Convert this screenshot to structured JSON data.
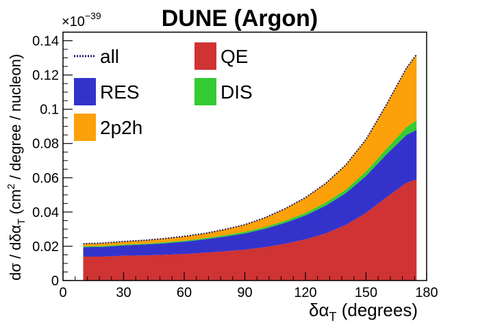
{
  "chart_data": {
    "type": "area",
    "title": "DUNE (Argon)",
    "stacked": true,
    "xlabel": "δα_T (degrees)",
    "ylabel": "dσ / dδα_T (cm^2 / degree / nucleon)",
    "y_multiplier": "×10^-39",
    "xlim": [
      0,
      180
    ],
    "ylim": [
      0,
      0.145
    ],
    "xticks": [
      0,
      30,
      60,
      90,
      120,
      150,
      180
    ],
    "xtick_labels": [
      "0",
      "30",
      "60",
      "90",
      "120",
      "150",
      "180"
    ],
    "yticks": [
      0,
      0.02,
      0.04,
      0.06,
      0.08,
      0.1,
      0.12,
      0.14
    ],
    "ytick_labels": [
      "0",
      "0.02",
      "0.04",
      "0.06",
      "0.08",
      "0.1",
      "0.12",
      "0.14"
    ],
    "x": [
      10,
      20,
      30,
      40,
      50,
      60,
      70,
      80,
      90,
      100,
      110,
      120,
      130,
      140,
      150,
      160,
      170,
      175
    ],
    "series": [
      {
        "name": "QE",
        "color": "#cf3333",
        "values": [
          0.014,
          0.014,
          0.0145,
          0.0147,
          0.015,
          0.0155,
          0.0162,
          0.017,
          0.018,
          0.0195,
          0.0215,
          0.024,
          0.0275,
          0.0325,
          0.0395,
          0.0485,
          0.057,
          0.059
        ]
      },
      {
        "name": "RES",
        "color": "#3333cc",
        "values": [
          0.0055,
          0.0057,
          0.006,
          0.0063,
          0.0067,
          0.0072,
          0.0078,
          0.0086,
          0.0095,
          0.0107,
          0.0122,
          0.014,
          0.0162,
          0.0185,
          0.0215,
          0.025,
          0.028,
          0.029
        ]
      },
      {
        "name": "DIS",
        "color": "#33cc33",
        "values": [
          0.0005,
          0.0005,
          0.0005,
          0.0005,
          0.0006,
          0.0006,
          0.0007,
          0.0008,
          0.0009,
          0.001,
          0.0012,
          0.0014,
          0.0017,
          0.0021,
          0.0026,
          0.0032,
          0.0045,
          0.0055
        ]
      },
      {
        "name": "2p2h",
        "color": "#fca10a",
        "values": [
          0.0015,
          0.0017,
          0.0018,
          0.002,
          0.0022,
          0.0025,
          0.0028,
          0.0034,
          0.0042,
          0.0055,
          0.0071,
          0.009,
          0.0113,
          0.0144,
          0.0188,
          0.0258,
          0.0345,
          0.0385
        ]
      }
    ],
    "total": {
      "name": "all",
      "color": "#1a1a66",
      "style": "dotted",
      "values": [
        0.0215,
        0.0219,
        0.0228,
        0.0235,
        0.0245,
        0.0258,
        0.0275,
        0.0298,
        0.0326,
        0.0367,
        0.042,
        0.0484,
        0.0567,
        0.0675,
        0.0824,
        0.1025,
        0.124,
        0.132
      ]
    },
    "legend": {
      "placement": "top-left",
      "entries": [
        {
          "label": "all",
          "series": "total",
          "marker": "line"
        },
        {
          "label": "QE",
          "series": "QE",
          "marker": "box"
        },
        {
          "label": "RES",
          "series": "RES",
          "marker": "box"
        },
        {
          "label": "DIS",
          "series": "DIS",
          "marker": "box"
        },
        {
          "label": "2p2h",
          "series": "2p2h",
          "marker": "box"
        }
      ]
    },
    "grid": false
  }
}
